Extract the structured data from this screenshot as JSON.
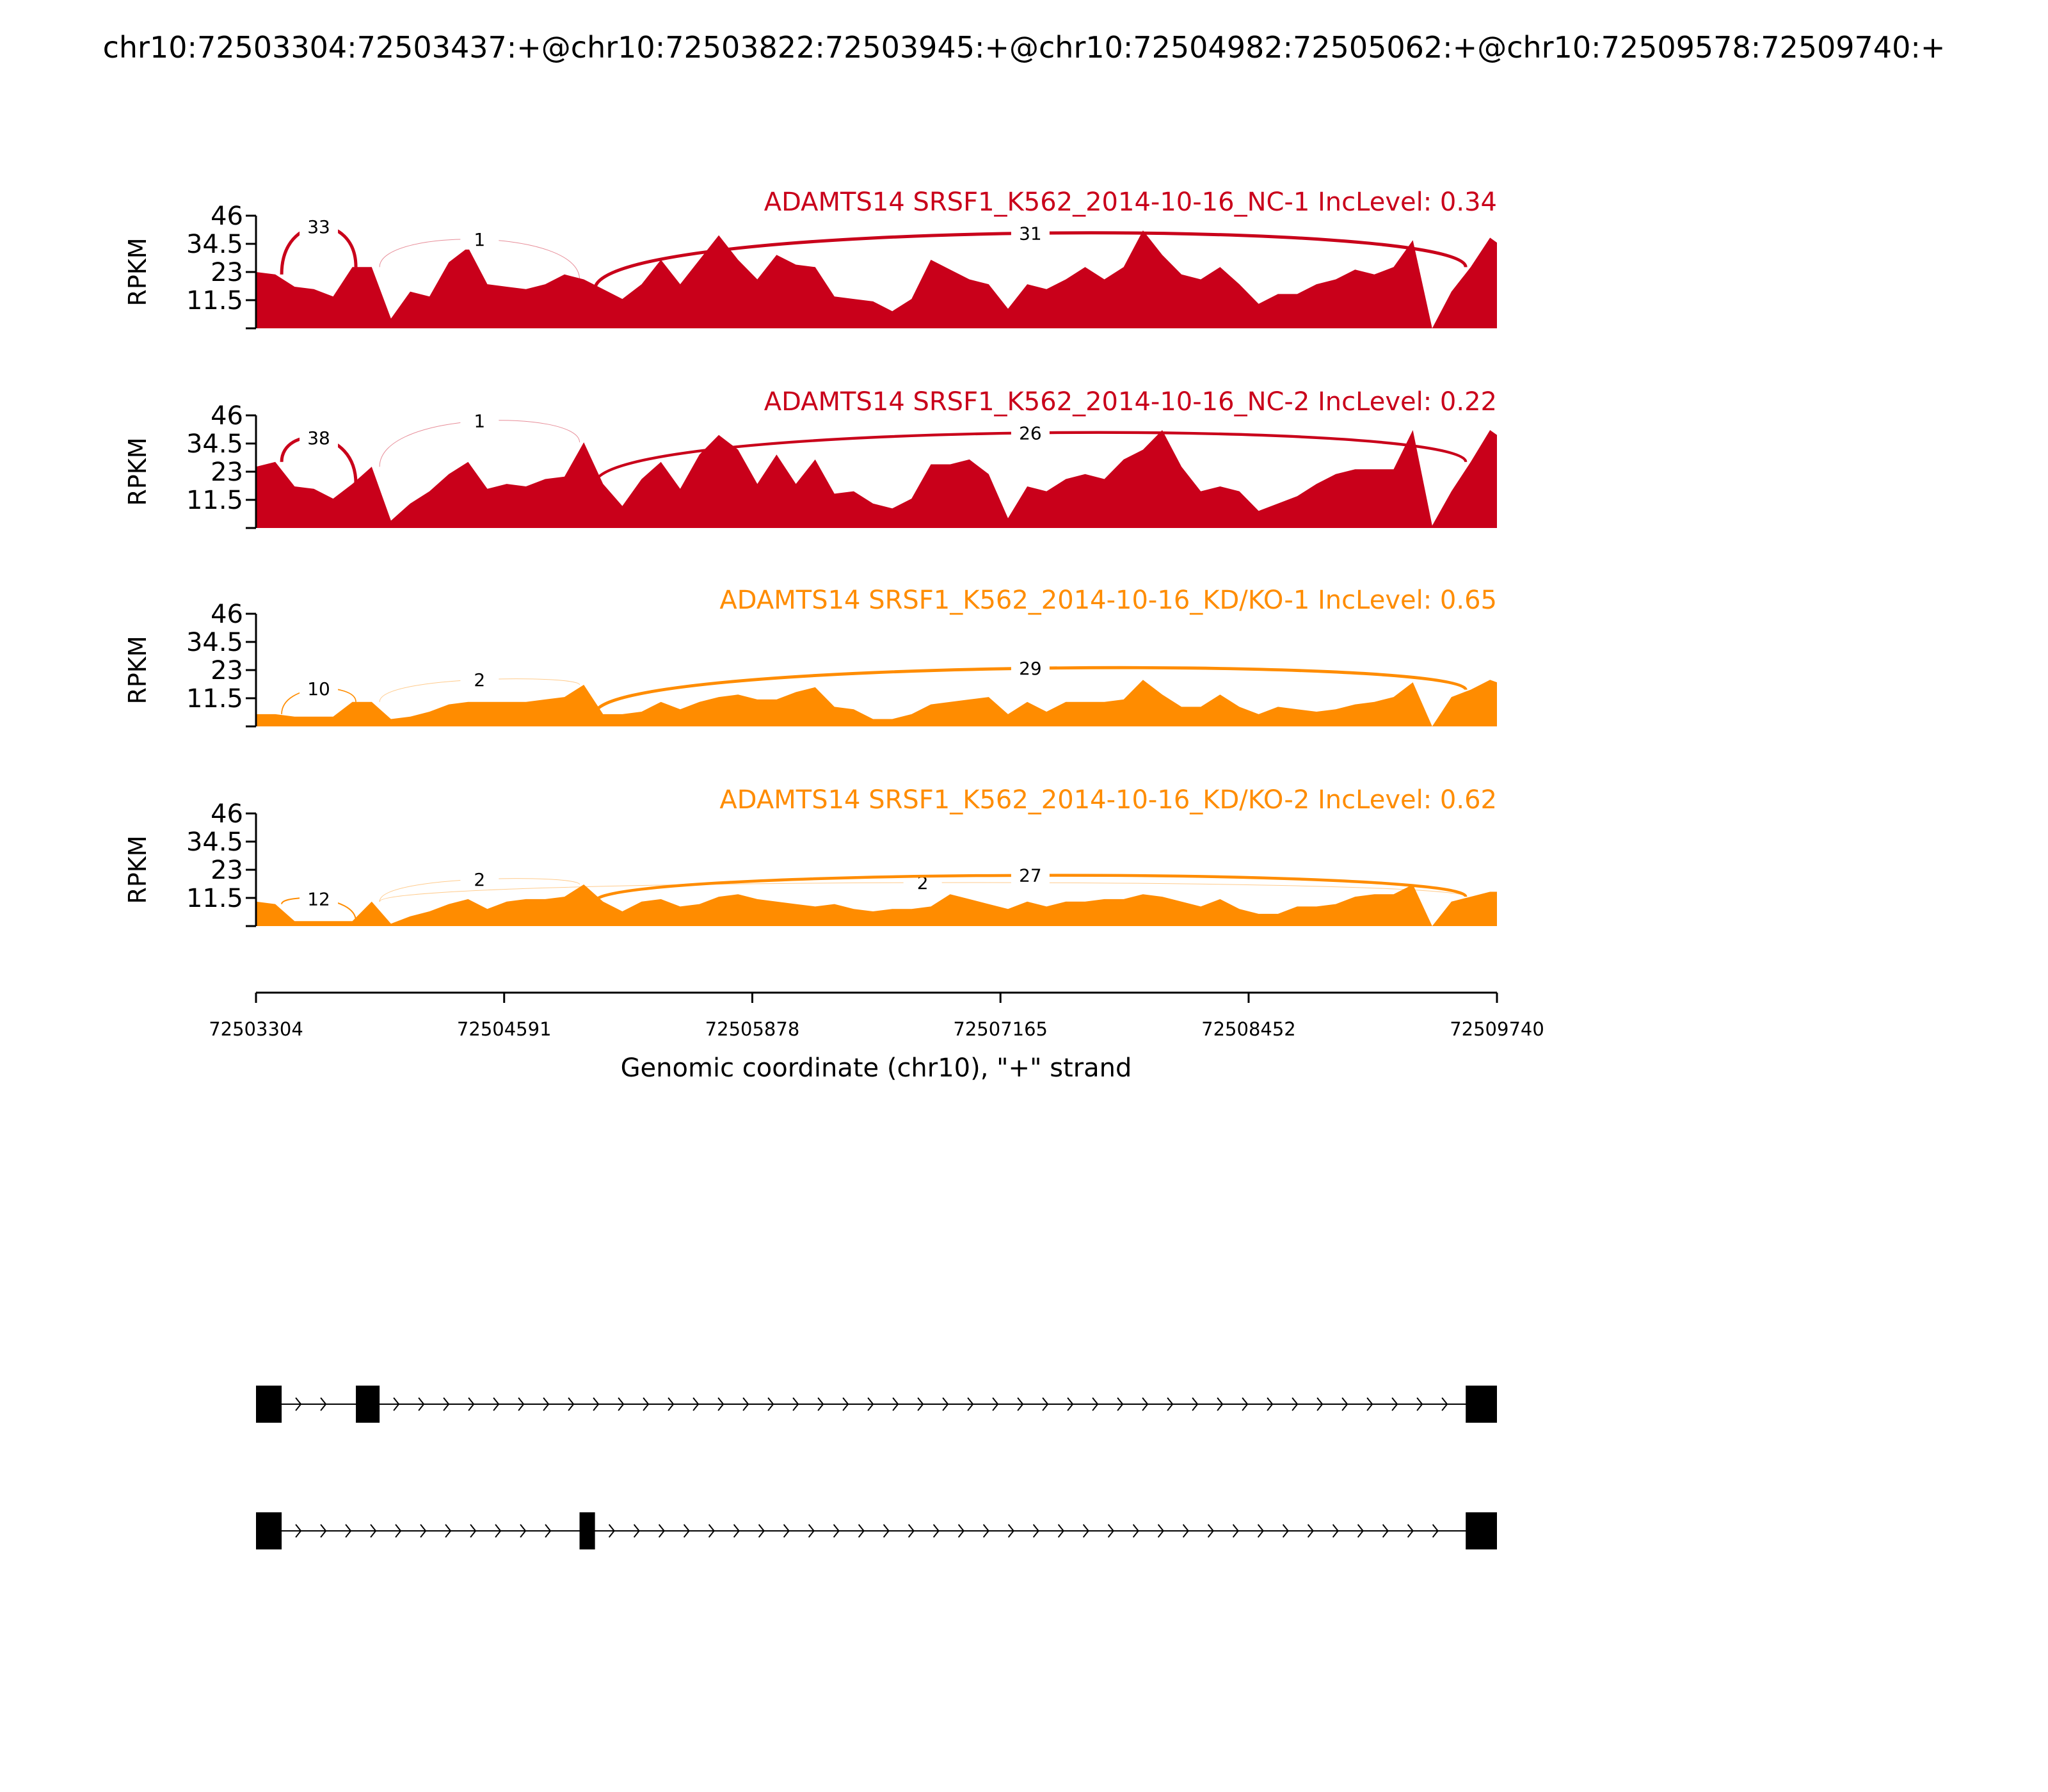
{
  "chart_data": {
    "type": "area",
    "title": "chr10:72503304:72503437:+@chr10:72503822:72503945:+@chr10:72504982:72505062:+@chr10:72509578:72509740:+",
    "xlabel": "Genomic coordinate (chr10), \"+\" strand",
    "ylabel": "RPKM",
    "xlim": [
      72503304,
      72509740
    ],
    "ylim": [
      0,
      46
    ],
    "yticks": [
      "11.5",
      "23",
      "34.5",
      "46"
    ],
    "yticks_values": [
      0,
      11.5,
      23,
      34.5,
      46
    ],
    "xticks": [
      "72503304",
      "72504591",
      "72505878",
      "72507165",
      "72508452",
      "72509740"
    ],
    "coverage_start": 72503304,
    "coverage_step_bp": 100,
    "colors": {
      "NC": "#c9001a",
      "KD": "#ff8c00"
    },
    "tracks": [
      {
        "label": "ADAMTS14 SRSF1_K562_2014-10-16_NC-1 IncLevel: 0.34",
        "group": "NC",
        "coverage": [
          23,
          22,
          17,
          16,
          13,
          25,
          25,
          4,
          15,
          13,
          27,
          33,
          18,
          17,
          16,
          18,
          22,
          20,
          16,
          12,
          18,
          28,
          18,
          28,
          38,
          28,
          20,
          30,
          26,
          25,
          13,
          12,
          11,
          7,
          12,
          28,
          24,
          20,
          18,
          8,
          18,
          16,
          20,
          25,
          20,
          25,
          40,
          30,
          22,
          20,
          25,
          18,
          10,
          14,
          14,
          18,
          20,
          24,
          22,
          25,
          36,
          0,
          15,
          25,
          37,
          35
        ],
        "junctions": [
          {
            "start": 72503437,
            "end": 72503822,
            "count": "33",
            "peak": 42
          },
          {
            "start": 72503945,
            "end": 72504982,
            "count": "1",
            "peak": 37
          },
          {
            "start": 72505062,
            "end": 72509578,
            "count": "31",
            "peak": 40
          }
        ]
      },
      {
        "label": "ADAMTS14 SRSF1_K562_2014-10-16_NC-2 IncLevel: 0.22",
        "group": "NC",
        "coverage": [
          25,
          27,
          17,
          16,
          12,
          18,
          25,
          3,
          10,
          15,
          22,
          27,
          16,
          18,
          17,
          20,
          21,
          35,
          18,
          9,
          20,
          27,
          16,
          30,
          38,
          32,
          18,
          30,
          18,
          28,
          14,
          15,
          10,
          8,
          12,
          26,
          26,
          28,
          22,
          4,
          17,
          15,
          20,
          22,
          20,
          28,
          32,
          40,
          25,
          15,
          17,
          15,
          7,
          10,
          13,
          18,
          22,
          24,
          24,
          24,
          40,
          1,
          15,
          27,
          40,
          38
        ],
        "junctions": [
          {
            "start": 72503437,
            "end": 72503822,
            "count": "38",
            "peak": 38
          },
          {
            "start": 72503945,
            "end": 72504982,
            "count": "1",
            "peak": 45
          },
          {
            "start": 72505062,
            "end": 72509578,
            "count": "26",
            "peak": 40
          }
        ]
      },
      {
        "label": "ADAMTS14 SRSF1_K562_2014-10-16_KD/KO-1 IncLevel: 0.65",
        "group": "KD",
        "coverage": [
          5,
          5,
          4,
          4,
          4,
          10,
          10,
          3,
          4,
          6,
          9,
          10,
          10,
          10,
          10,
          11,
          12,
          17,
          5,
          5,
          6,
          10,
          7,
          10,
          12,
          13,
          11,
          11,
          14,
          16,
          8,
          7,
          3,
          3,
          5,
          9,
          10,
          11,
          12,
          5,
          10,
          6,
          10,
          10,
          10,
          11,
          19,
          13,
          8,
          8,
          13,
          8,
          5,
          8,
          7,
          6,
          7,
          9,
          10,
          12,
          18,
          0,
          12,
          15,
          19,
          18
        ],
        "junctions": [
          {
            "start": 72503437,
            "end": 72503822,
            "count": "10",
            "peak": 16
          },
          {
            "start": 72503945,
            "end": 72504982,
            "count": "2",
            "peak": 20
          },
          {
            "start": 72505062,
            "end": 72509578,
            "count": "29",
            "peak": 25
          }
        ]
      },
      {
        "label": "ADAMTS14 SRSF1_K562_2014-10-16_KD/KO-2 IncLevel: 0.62",
        "group": "KD",
        "coverage": [
          10,
          9,
          2,
          2,
          2,
          2,
          10,
          1,
          4,
          6,
          9,
          11,
          7,
          10,
          11,
          11,
          12,
          17,
          10,
          6,
          10,
          11,
          8,
          9,
          12,
          13,
          11,
          10,
          9,
          8,
          9,
          7,
          6,
          7,
          7,
          8,
          13,
          11,
          9,
          7,
          10,
          8,
          10,
          10,
          11,
          11,
          13,
          12,
          10,
          8,
          11,
          7,
          5,
          5,
          8,
          8,
          9,
          12,
          13,
          13,
          17,
          0,
          10,
          12,
          14,
          14
        ],
        "junctions": [
          {
            "start": 72503437,
            "end": 72503822,
            "count": "12",
            "peak": 12
          },
          {
            "start": 72503945,
            "end": 72504982,
            "count": "2",
            "peak": 20
          },
          {
            "start": 72503945,
            "end": 72509578,
            "count": "2",
            "peak": 18
          },
          {
            "start": 72505062,
            "end": 72509578,
            "count": "27",
            "peak": 21
          }
        ]
      }
    ],
    "isoforms": [
      {
        "exons": [
          [
            72503304,
            72503437
          ],
          [
            72503822,
            72503945
          ],
          [
            72509578,
            72509740
          ]
        ]
      },
      {
        "exons": [
          [
            72503304,
            72503437
          ],
          [
            72504982,
            72505062
          ],
          [
            72509578,
            72509740
          ]
        ]
      }
    ]
  }
}
